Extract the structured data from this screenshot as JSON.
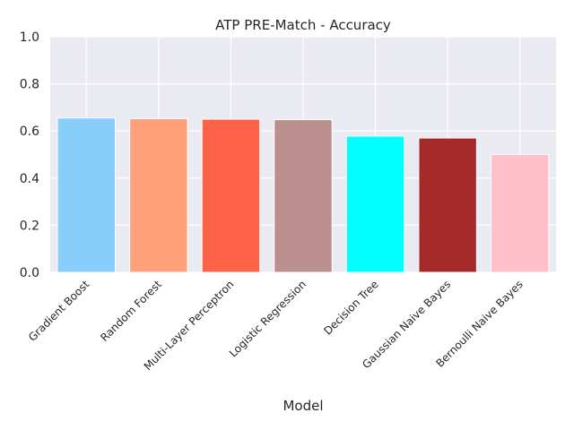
{
  "chart_data": {
    "type": "bar",
    "title": "ATP PRE-Match - Accuracy",
    "xlabel": "Model",
    "ylabel": "",
    "ylim": [
      0,
      1.0
    ],
    "yticks": [
      "0.0",
      "0.2",
      "0.4",
      "0.6",
      "0.8",
      "1.0"
    ],
    "grid": true,
    "categories": [
      "Gradient Boost",
      "Random Forest",
      "Multi-Layer Perceptron",
      "Logistic Regression",
      "Decision Tree",
      "Gaussian Naive Bayes",
      "Bernoulli Naive Bayes"
    ],
    "values": [
      0.655,
      0.652,
      0.65,
      0.648,
      0.578,
      0.57,
      0.5
    ],
    "colors": [
      "#87cefa",
      "#ffa07a",
      "#ff6347",
      "#bc8f8f",
      "#00ffff",
      "#a52a2a",
      "#ffc0cb"
    ],
    "background": "#eaeaf2"
  }
}
